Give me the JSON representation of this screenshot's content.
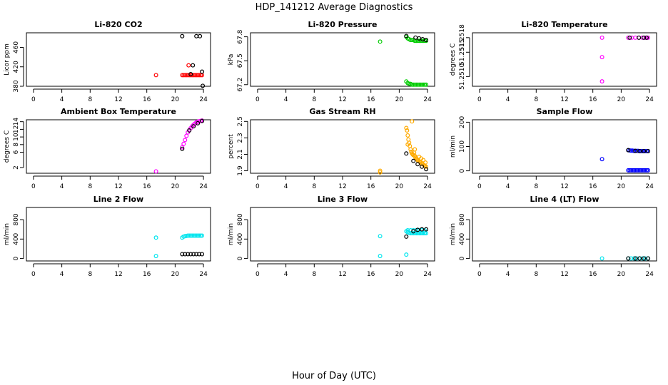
{
  "title": "HDP_141212  Average Diagnostics",
  "xlabel": "Hour of Day (UTC)",
  "chart_data": [
    {
      "type": "scatter",
      "title": "Li-820 CO2",
      "ylabel": "Licor ppm",
      "xlim": [
        -1,
        25
      ],
      "ylim": [
        380,
        490
      ],
      "xticks": [
        0,
        4,
        8,
        12,
        16,
        20,
        24
      ],
      "xtick_labels": [
        "0",
        "4",
        "8",
        "12",
        "16",
        "20",
        "24"
      ],
      "yticks": [
        380,
        420,
        460
      ],
      "ytick_labels": [
        "380",
        "420",
        "460"
      ],
      "series": [
        {
          "name": "s1",
          "color": "#ff0000",
          "x": [
            17.3,
            21.0,
            21.2,
            21.4,
            21.6,
            21.8,
            22.0,
            22.2,
            22.4,
            22.6,
            22.8,
            23.0,
            23.2,
            23.4,
            23.6,
            23.8,
            21.9
          ],
          "y": [
            403,
            403,
            403,
            403,
            403,
            403,
            403,
            403,
            403,
            403,
            403,
            403,
            403,
            403,
            403,
            403,
            423
          ]
        },
        {
          "name": "s2",
          "color": "#000000",
          "x": [
            21.0,
            22.2,
            22.5,
            23.0,
            23.5,
            23.8,
            23.9
          ],
          "y": [
            483,
            405,
            423,
            483,
            483,
            410,
            381
          ]
        }
      ]
    },
    {
      "type": "scatter",
      "title": "Li-820 Pressure",
      "ylabel": "kPa",
      "xlim": [
        -1,
        25
      ],
      "ylim": [
        67.18,
        67.85
      ],
      "xticks": [
        0,
        4,
        8,
        12,
        16,
        20,
        24
      ],
      "xtick_labels": [
        "0",
        "4",
        "8",
        "12",
        "16",
        "20",
        "24"
      ],
      "yticks": [
        67.2,
        67.5,
        67.8
      ],
      "ytick_labels": [
        "67.2",
        "67.5",
        "67.8"
      ],
      "series": [
        {
          "name": "s1",
          "color": "#00cc00",
          "x": [
            17.3,
            21.0,
            21.2,
            21.4,
            21.6,
            21.8,
            22.0,
            22.2,
            22.4,
            22.6,
            22.8,
            23.0,
            23.2,
            23.4,
            23.6,
            23.8,
            21.0,
            21.2,
            21.4,
            21.6,
            21.8,
            22.0,
            22.2,
            22.4,
            22.6,
            22.8,
            23.0,
            23.2,
            23.4,
            23.6,
            23.8
          ],
          "y": [
            67.74,
            67.8,
            67.78,
            67.77,
            67.76,
            67.76,
            67.76,
            67.75,
            67.75,
            67.75,
            67.75,
            67.75,
            67.75,
            67.75,
            67.75,
            67.75,
            67.24,
            67.22,
            67.21,
            67.21,
            67.2,
            67.2,
            67.2,
            67.2,
            67.2,
            67.2,
            67.2,
            67.2,
            67.2,
            67.2,
            67.2
          ]
        },
        {
          "name": "s2",
          "color": "#000000",
          "x": [
            21.0,
            22.3,
            22.8,
            23.3,
            23.8
          ],
          "y": [
            67.81,
            67.79,
            67.78,
            67.77,
            67.76
          ]
        }
      ]
    },
    {
      "type": "scatter",
      "title": "Li-820 Temperature",
      "ylabel": "degrees C",
      "xlim": [
        -1,
        25
      ],
      "ylim": [
        51.2508,
        51.2519
      ],
      "xticks": [
        0,
        4,
        8,
        12,
        16,
        20,
        24
      ],
      "xtick_labels": [
        "0",
        "4",
        "8",
        "12",
        "16",
        "20",
        "24"
      ],
      "yticks": [
        51.251,
        51.2515,
        51.2518
      ],
      "ytick_labels": [
        "51.2510",
        "51.2515",
        "51.2518"
      ],
      "series": [
        {
          "name": "s1",
          "color": "#ff00ff",
          "x": [
            17.3,
            17.3,
            17.3,
            21.0,
            21.5,
            22.0,
            22.5,
            23.0,
            23.5,
            23.8
          ],
          "y": [
            51.2518,
            51.2514,
            51.2509,
            51.2518,
            51.2518,
            51.2518,
            51.2518,
            51.2518,
            51.2518,
            51.2518
          ]
        },
        {
          "name": "s2",
          "color": "#000000",
          "x": [
            21.2,
            22.5,
            23.2,
            23.6
          ],
          "y": [
            51.2518,
            51.2518,
            51.2518,
            51.2518
          ]
        }
      ]
    },
    {
      "type": "scatter",
      "title": "Ambient Box Temperature",
      "ylabel": "degrees C",
      "xlim": [
        -1,
        25
      ],
      "ylim": [
        0.5,
        14.5
      ],
      "xticks": [
        0,
        4,
        8,
        12,
        16,
        20,
        24
      ],
      "xtick_labels": [
        "0",
        "4",
        "8",
        "12",
        "16",
        "20",
        "24"
      ],
      "yticks": [
        2,
        6,
        8,
        10,
        12,
        14
      ],
      "ytick_labels": [
        "2",
        "6",
        "8",
        "10",
        "12",
        "14"
      ],
      "series": [
        {
          "name": "s1",
          "color": "#ff00ff",
          "x": [
            17.3,
            21.0,
            21.2,
            21.4,
            21.6,
            21.8,
            22.0,
            22.2,
            22.4,
            22.6,
            22.8,
            23.0,
            23.2,
            23.4,
            23.6,
            23.8
          ],
          "y": [
            1.0,
            7.3,
            8.2,
            9.2,
            10.3,
            11.2,
            11.8,
            12.3,
            12.8,
            13.2,
            13.5,
            13.8,
            14.0,
            14.1,
            14.2,
            14.3
          ]
        },
        {
          "name": "s2",
          "color": "#000000",
          "x": [
            21.0,
            22.0,
            22.6,
            23.2,
            23.8
          ],
          "y": [
            6.9,
            11.7,
            12.8,
            13.6,
            14.2
          ]
        }
      ]
    },
    {
      "type": "scatter",
      "title": "Gas Stream RH",
      "ylabel": "percent",
      "xlim": [
        -1,
        25
      ],
      "ylim": [
        1.87,
        2.52
      ],
      "xticks": [
        0,
        4,
        8,
        12,
        16,
        20,
        24
      ],
      "xtick_labels": [
        "0",
        "4",
        "8",
        "12",
        "16",
        "20",
        "24"
      ],
      "yticks": [
        1.9,
        2.1,
        2.3,
        2.5
      ],
      "ytick_labels": [
        "1.9",
        "2.1",
        "2.3",
        "2.5"
      ],
      "series": [
        {
          "name": "s1",
          "color": "#ffaa00",
          "x": [
            17.3,
            17.3,
            21.0,
            21.1,
            21.2,
            21.3,
            21.4,
            21.5,
            21.6,
            21.7,
            21.8,
            21.9,
            22.0,
            22.1,
            22.2,
            22.3,
            22.4,
            22.5,
            22.6,
            22.7,
            22.8,
            22.9,
            23.0,
            23.1,
            23.2,
            23.3,
            23.4,
            23.5,
            23.6,
            23.7,
            23.8,
            21.8,
            22.2,
            21.2
          ],
          "y": [
            1.88,
            1.9,
            2.42,
            2.39,
            2.33,
            2.28,
            2.24,
            2.2,
            2.16,
            2.13,
            2.11,
            2.1,
            2.09,
            2.12,
            2.08,
            2.06,
            2.05,
            2.04,
            2.03,
            2.02,
            2.07,
            2.01,
            2.0,
            2.05,
            1.99,
            1.98,
            2.03,
            1.97,
            1.96,
            2.0,
            1.95,
            2.5,
            2.16,
            2.22
          ]
        },
        {
          "name": "s2",
          "color": "#000000",
          "x": [
            21.0,
            22.0,
            22.6,
            23.2,
            23.8
          ],
          "y": [
            2.11,
            2.02,
            1.98,
            1.95,
            1.92
          ]
        }
      ]
    },
    {
      "type": "scatter",
      "title": "Sample Flow",
      "ylabel": "ml/min",
      "xlim": [
        -1,
        25
      ],
      "ylim": [
        -10,
        210
      ],
      "xticks": [
        0,
        4,
        8,
        12,
        16,
        20,
        24
      ],
      "xtick_labels": [
        "0",
        "4",
        "8",
        "12",
        "16",
        "20",
        "24"
      ],
      "yticks": [
        0,
        100,
        200
      ],
      "ytick_labels": [
        "0",
        "100",
        "200"
      ],
      "series": [
        {
          "name": "s1",
          "color": "#0000ff",
          "x": [
            17.3,
            21.0,
            21.2,
            21.4,
            21.6,
            21.8,
            22.0,
            22.2,
            22.4,
            22.6,
            22.8,
            23.0,
            23.2,
            23.4,
            23.6,
            23.8,
            21.0,
            21.2,
            21.4,
            21.6,
            21.8,
            22.0,
            22.2,
            22.4,
            22.6,
            22.8,
            23.0,
            23.2,
            23.4,
            23.6,
            23.8
          ],
          "y": [
            48,
            85,
            84,
            83,
            83,
            82,
            82,
            82,
            82,
            81,
            81,
            81,
            81,
            81,
            81,
            81,
            2,
            2,
            2,
            2,
            2,
            2,
            2,
            2,
            2,
            2,
            2,
            2,
            2,
            2,
            2
          ]
        },
        {
          "name": "s2",
          "color": "#000000",
          "x": [
            21.0,
            22.0,
            22.6,
            23.2,
            23.8
          ],
          "y": [
            85,
            82,
            81,
            81,
            81
          ]
        }
      ]
    },
    {
      "type": "scatter",
      "title": "Line 2 Flow",
      "ylabel": "ml/min",
      "xlim": [
        -1,
        25
      ],
      "ylim": [
        -50,
        1050
      ],
      "xticks": [
        0,
        4,
        8,
        12,
        16,
        20,
        24
      ],
      "xtick_labels": [
        "0",
        "4",
        "8",
        "12",
        "16",
        "20",
        "24"
      ],
      "yticks": [
        0,
        400,
        800
      ],
      "ytick_labels": [
        "0",
        "400",
        "800"
      ],
      "series": [
        {
          "name": "s1",
          "color": "#00e5ee",
          "x": [
            17.3,
            17.3,
            21.0,
            21.2,
            21.4,
            21.6,
            21.8,
            22.0,
            22.2,
            22.4,
            22.6,
            22.8,
            23.0,
            23.2,
            23.4,
            23.6,
            23.8
          ],
          "y": [
            430,
            50,
            430,
            450,
            460,
            465,
            470,
            470,
            470,
            470,
            470,
            470,
            470,
            470,
            470,
            470,
            470
          ]
        },
        {
          "name": "s2",
          "color": "#000000",
          "x": [
            21.0,
            21.4,
            21.8,
            22.2,
            22.6,
            23.0,
            23.4,
            23.8
          ],
          "y": [
            90,
            90,
            90,
            90,
            90,
            90,
            90,
            90
          ]
        }
      ]
    },
    {
      "type": "scatter",
      "title": "Line 3 Flow",
      "ylabel": "ml/min",
      "xlim": [
        -1,
        25
      ],
      "ylim": [
        -50,
        1050
      ],
      "xticks": [
        0,
        4,
        8,
        12,
        16,
        20,
        24
      ],
      "xtick_labels": [
        "0",
        "4",
        "8",
        "12",
        "16",
        "20",
        "24"
      ],
      "yticks": [
        0,
        400,
        800
      ],
      "ytick_labels": [
        "0",
        "400",
        "800"
      ],
      "series": [
        {
          "name": "s1",
          "color": "#00e5ee",
          "x": [
            17.3,
            17.3,
            21.0,
            21.0,
            21.2,
            21.4,
            21.6,
            21.8,
            22.0,
            22.2,
            22.4,
            22.6,
            22.8,
            23.0,
            23.2,
            23.4,
            23.6,
            23.8,
            21.2,
            21.6,
            22.0,
            22.4,
            22.8,
            23.2,
            23.6
          ],
          "y": [
            460,
            50,
            80,
            560,
            540,
            530,
            520,
            520,
            520,
            520,
            520,
            520,
            520,
            520,
            520,
            520,
            520,
            520,
            580,
            580,
            580,
            580,
            580,
            580,
            580
          ]
        },
        {
          "name": "s2",
          "color": "#000000",
          "x": [
            21.0,
            22.0,
            22.6,
            23.2,
            23.8
          ],
          "y": [
            450,
            560,
            590,
            600,
            600
          ]
        }
      ]
    },
    {
      "type": "scatter",
      "title": "Line 4 (LT) Flow",
      "ylabel": "ml/min",
      "xlim": [
        -1,
        25
      ],
      "ylim": [
        -50,
        1050
      ],
      "xticks": [
        0,
        4,
        8,
        12,
        16,
        20,
        24
      ],
      "xtick_labels": [
        "0",
        "4",
        "8",
        "12",
        "16",
        "20",
        "24"
      ],
      "yticks": [
        0,
        400,
        800
      ],
      "ytick_labels": [
        "0",
        "400",
        "800"
      ],
      "series": [
        {
          "name": "s1",
          "color": "#00e5ee",
          "x": [
            17.3,
            21.0,
            21.4,
            21.8,
            22.2,
            22.6,
            23.0,
            23.4,
            23.8
          ],
          "y": [
            2,
            2,
            2,
            2,
            2,
            2,
            2,
            2,
            2
          ]
        },
        {
          "name": "s2",
          "color": "#000000",
          "x": [
            21.0,
            22.0,
            22.6,
            23.2,
            23.8
          ],
          "y": [
            2,
            2,
            2,
            2,
            2
          ]
        }
      ]
    }
  ]
}
